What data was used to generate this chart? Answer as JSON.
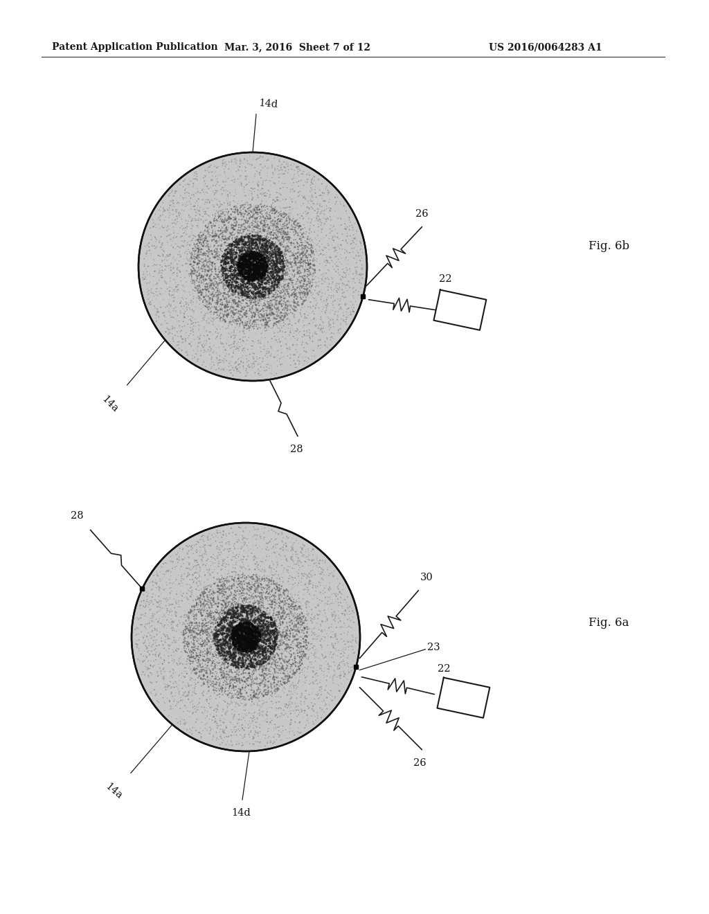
{
  "bg_color": "#ffffff",
  "header_left": "Patent Application Publication",
  "header_mid": "Mar. 3, 2016  Sheet 7 of 12",
  "header_right": "US 2016/0064283 A1",
  "fig_top_label": "Fig. 6b",
  "fig_bot_label": "Fig. 6a",
  "labels": {
    "14d": "14d",
    "14a": "14a",
    "26": "26",
    "22": "22",
    "28": "28",
    "30": "30",
    "23": "23"
  }
}
